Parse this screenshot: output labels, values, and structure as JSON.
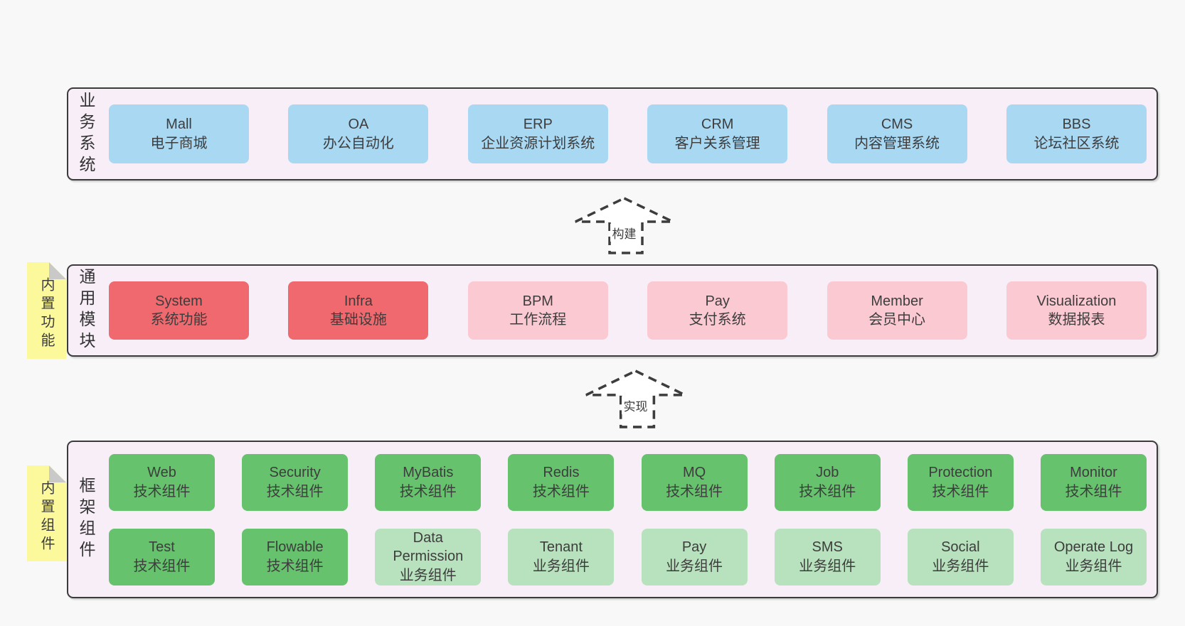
{
  "colors": {
    "blue": "#a9d8f3",
    "red": "#f0696e",
    "pink": "#fbc9d2",
    "green": "#66c26d",
    "greenLight": "#b8e1bd",
    "sectionFill": "#f7eef7",
    "sectionBorder": "#3b3b3b",
    "sticky": "#fbf99c",
    "stickyFold": "#c9c9c9",
    "text": "#3d3d3d"
  },
  "sections": [
    {
      "id": "business-systems",
      "label": "业务系统",
      "sticky": null,
      "rows": [
        {
          "cols": 6,
          "boxes": [
            {
              "en": "Mall",
              "zh": "电子商城",
              "variant": "blue"
            },
            {
              "en": "OA",
              "zh": "办公自动化",
              "variant": "blue"
            },
            {
              "en": "ERP",
              "zh": "企业资源计划系统",
              "variant": "blue"
            },
            {
              "en": "CRM",
              "zh": "客户关系管理",
              "variant": "blue"
            },
            {
              "en": "CMS",
              "zh": "内容管理系统",
              "variant": "blue"
            },
            {
              "en": "BBS",
              "zh": "论坛社区系统",
              "variant": "blue"
            }
          ]
        }
      ]
    },
    {
      "id": "common-modules",
      "label": "通用模块",
      "sticky": "内置功能",
      "rows": [
        {
          "cols": 6,
          "boxes": [
            {
              "en": "System",
              "zh": "系统功能",
              "variant": "red"
            },
            {
              "en": "Infra",
              "zh": "基础设施",
              "variant": "red"
            },
            {
              "en": "BPM",
              "zh": "工作流程",
              "variant": "pink"
            },
            {
              "en": "Pay",
              "zh": "支付系统",
              "variant": "pink"
            },
            {
              "en": "Member",
              "zh": "会员中心",
              "variant": "pink"
            },
            {
              "en": "Visualization",
              "zh": "数据报表",
              "variant": "pink"
            }
          ]
        }
      ]
    },
    {
      "id": "framework-components",
      "label": "框架组件",
      "sticky": "内置组件",
      "rows": [
        {
          "cols": 8,
          "boxes": [
            {
              "en": "Web",
              "zh": "技术组件",
              "variant": "green"
            },
            {
              "en": "Security",
              "zh": "技术组件",
              "variant": "green"
            },
            {
              "en": "MyBatis",
              "zh": "技术组件",
              "variant": "green"
            },
            {
              "en": "Redis",
              "zh": "技术组件",
              "variant": "green"
            },
            {
              "en": "MQ",
              "zh": "技术组件",
              "variant": "green"
            },
            {
              "en": "Job",
              "zh": "技术组件",
              "variant": "green"
            },
            {
              "en": "Protection",
              "zh": "技术组件",
              "variant": "green"
            },
            {
              "en": "Monitor",
              "zh": "技术组件",
              "variant": "green"
            }
          ]
        },
        {
          "cols": 8,
          "boxes": [
            {
              "en": "Test",
              "zh": "技术组件",
              "variant": "green"
            },
            {
              "en": "Flowable",
              "zh": "技术组件",
              "variant": "green"
            },
            {
              "en": "Data Permission",
              "zh": "业务组件",
              "variant": "green-light"
            },
            {
              "en": "Tenant",
              "zh": "业务组件",
              "variant": "green-light"
            },
            {
              "en": "Pay",
              "zh": "业务组件",
              "variant": "green-light"
            },
            {
              "en": "SMS",
              "zh": "业务组件",
              "variant": "green-light"
            },
            {
              "en": "Social",
              "zh": "业务组件",
              "variant": "green-light"
            },
            {
              "en": "Operate Log",
              "zh": "业务组件",
              "variant": "green-light"
            }
          ]
        }
      ]
    }
  ],
  "arrows": [
    {
      "label": "构建"
    },
    {
      "label": "实现"
    }
  ]
}
